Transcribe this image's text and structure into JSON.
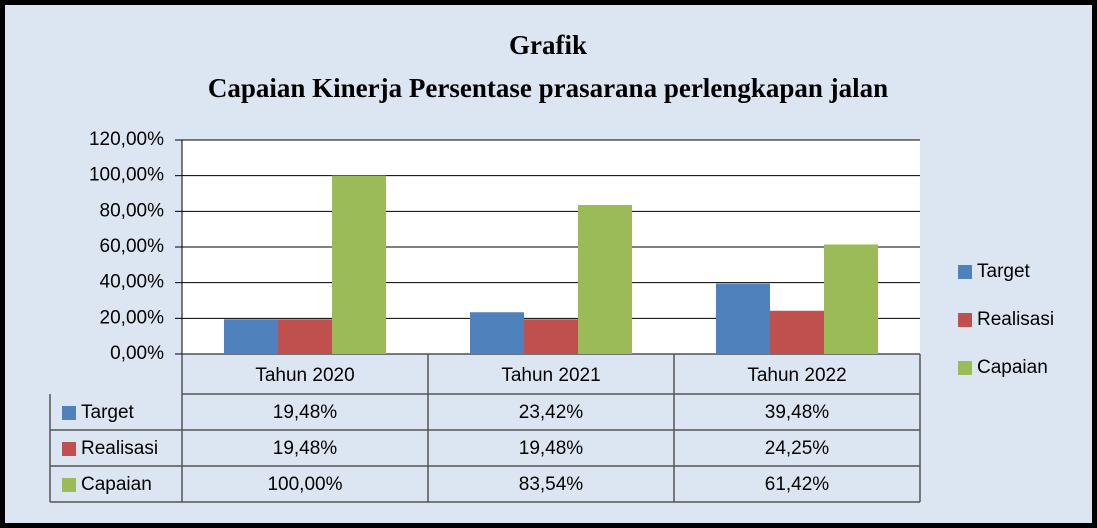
{
  "chart_data": {
    "type": "bar",
    "title": "Grafik",
    "subtitle": "Capaian Kinerja Persentase prasarana perlengkapan jalan",
    "categories": [
      "Tahun 2020",
      "Tahun 2021",
      "Tahun 2022"
    ],
    "series": [
      {
        "name": "Target",
        "color": "#4f81bd",
        "values": [
          19.48,
          23.42,
          39.48
        ],
        "value_labels": [
          "19,48%",
          "23,42%",
          "39,48%"
        ]
      },
      {
        "name": "Realisasi",
        "color": "#c0504d",
        "values": [
          19.48,
          19.48,
          24.25
        ],
        "value_labels": [
          "19,48%",
          "19,48%",
          "24,25%"
        ]
      },
      {
        "name": "Capaian",
        "color": "#9bbb59",
        "values": [
          100,
          83.54,
          61.42
        ],
        "value_labels": [
          "100,00%",
          "83,54%",
          "61,42%"
        ]
      }
    ],
    "ylim": [
      0,
      120
    ],
    "yticks": [
      {
        "value": 0,
        "label": "0,00%"
      },
      {
        "value": 20,
        "label": "20,00%"
      },
      {
        "value": 40,
        "label": "40,00%"
      },
      {
        "value": 60,
        "label": "60,00%"
      },
      {
        "value": 80,
        "label": "80,00%"
      },
      {
        "value": 100,
        "label": "100,00%"
      },
      {
        "value": 120,
        "label": "120,00%"
      }
    ],
    "grid": true,
    "legend": "right"
  }
}
